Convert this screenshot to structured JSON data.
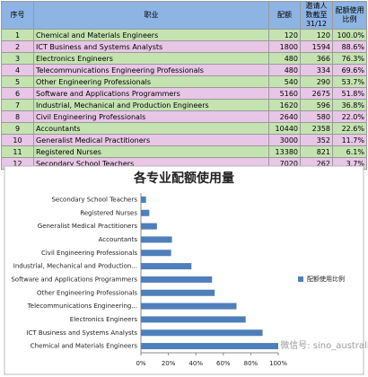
{
  "table": {
    "header": [
      "序号",
      "职业",
      "配额",
      "邀请人数截至31/12",
      "配额使用比例"
    ],
    "rows": [
      [
        "1",
        "Chemical and Materials Engineers",
        "120",
        "120",
        "100.0%"
      ],
      [
        "2",
        "ICT Business and Systems Analysts",
        "1800",
        "1594",
        "88.6%"
      ],
      [
        "3",
        "Electronics Engineers",
        "480",
        "366",
        "76.3%"
      ],
      [
        "4",
        "Telecommunications Engineering Professionals",
        "480",
        "334",
        "69.6%"
      ],
      [
        "5",
        "Other Engineering Professionals",
        "540",
        "290",
        "53.7%"
      ],
      [
        "6",
        "Software and Applications Programmers",
        "5160",
        "2675",
        "51.8%"
      ],
      [
        "7",
        "Industrial, Mechanical and Production Engineers",
        "1620",
        "596",
        "36.8%"
      ],
      [
        "8",
        "Civil Engineering Professionals",
        "2640",
        "580",
        "22.0%"
      ],
      [
        "9",
        "Accountants",
        "10440",
        "2358",
        "22.6%"
      ],
      [
        "10",
        "Generalist Medical Practitioners",
        "3000",
        "352",
        "11.7%"
      ],
      [
        "11",
        "Registered Nurses",
        "13380",
        "821",
        "6.1%"
      ],
      [
        "12",
        "Secondary School Teachers",
        "7020",
        "262",
        "3.7%"
      ]
    ]
  },
  "chart_data": {
    "type": "hbar",
    "title": "各专业配额使用量",
    "categories": [
      "Chemical and Materials Engineers",
      "ICT Business and Systems Analysts",
      "Electronics Engineers",
      "Telecommunications Engineering...",
      "Other Engineering Professionals",
      "Software and Applications Programmers",
      "Industrial, Mechanical and Production...",
      "Civil Engineering Professionals",
      "Accountants",
      "Generalist Medical Practitioners",
      "Registered Nurses",
      "Secondary School Teachers"
    ],
    "series": [
      {
        "name": "配额使用比例",
        "color": "#4f7fba",
        "values": [
          100,
          88.6,
          76.3,
          69.6,
          53.7,
          51.8,
          36.8,
          22.0,
          22.6,
          11.7,
          6.1,
          3.7
        ]
      }
    ],
    "xlim": [
      0,
      100
    ],
    "xticks": [
      {
        "value": 0,
        "label": "0%"
      },
      {
        "value": 20,
        "label": "20%"
      },
      {
        "value": 40,
        "label": "40%"
      },
      {
        "value": 60,
        "label": "60%"
      },
      {
        "value": 80,
        "label": "80%"
      },
      {
        "value": 100,
        "label": "100%"
      }
    ],
    "legend": "right",
    "watermark": "微信号: sino_australia"
  }
}
